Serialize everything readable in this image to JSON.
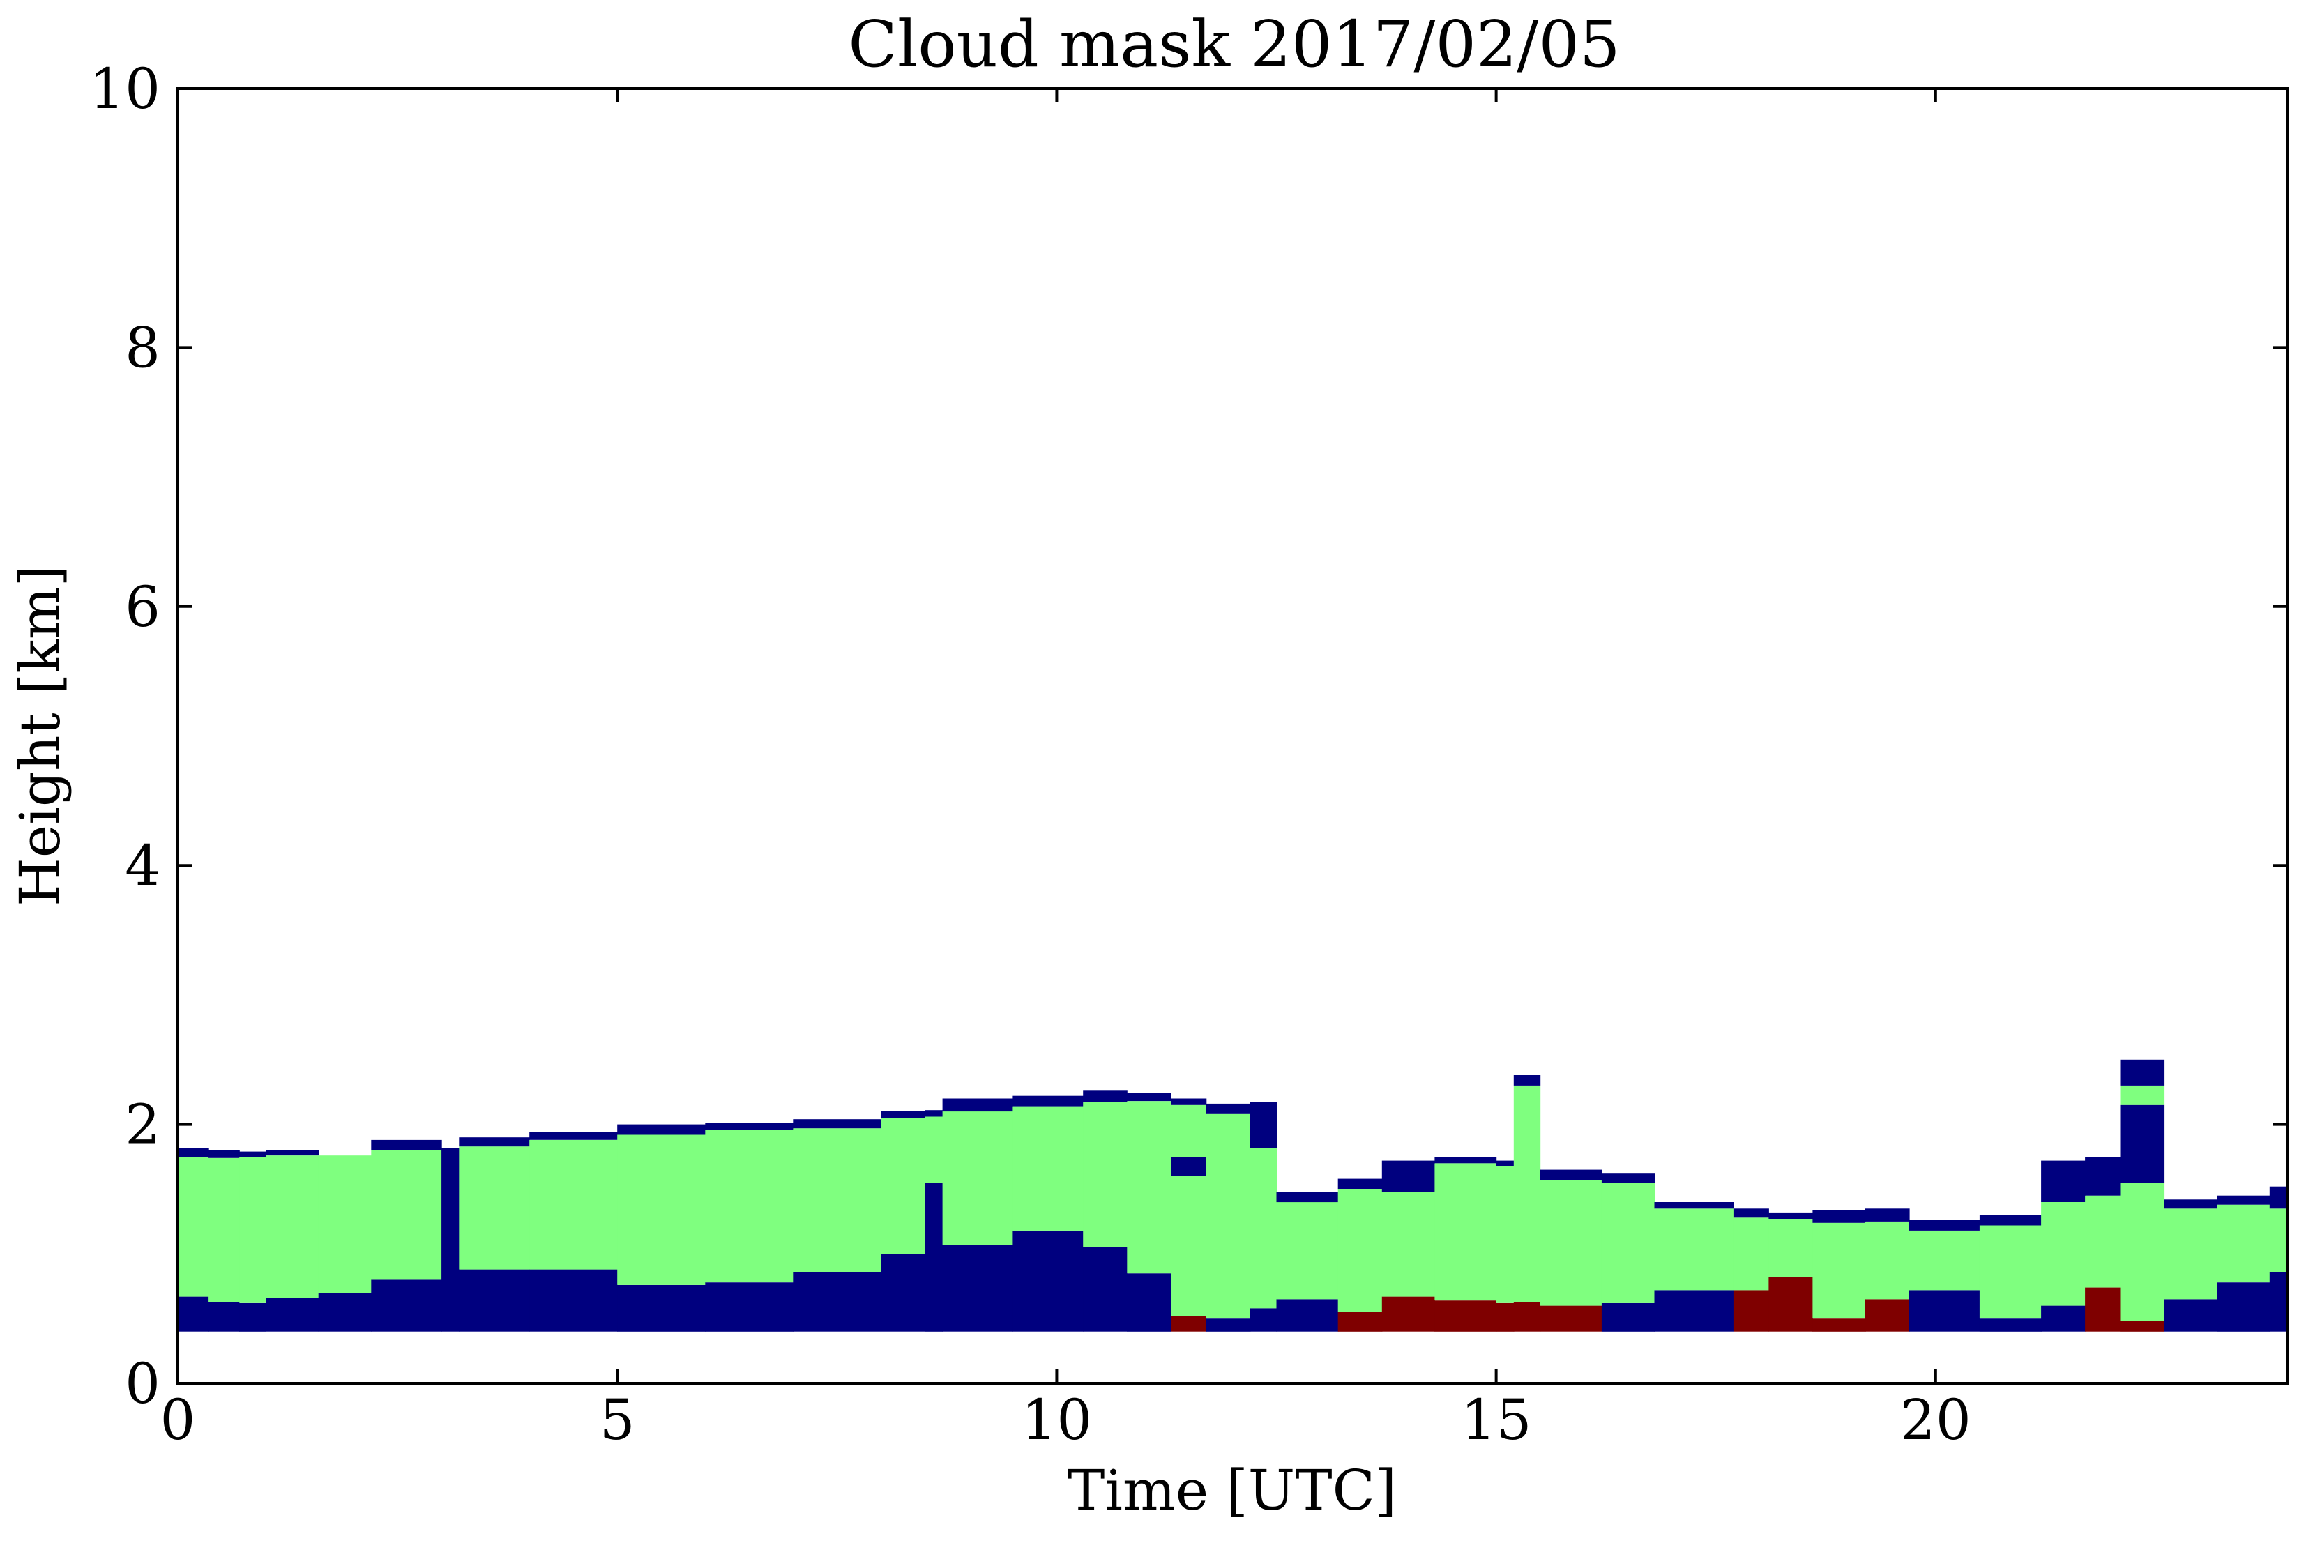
{
  "chart_data": {
    "type": "heatmap",
    "title": "Cloud mask 2017/02/05",
    "xlabel": "Time [UTC]",
    "ylabel": "Height [km]",
    "xlim": [
      0,
      24
    ],
    "ylim": [
      0,
      10
    ],
    "xticks": [
      0,
      5,
      10,
      15,
      20
    ],
    "xtick_labels": [
      "0",
      "5",
      "10",
      "15",
      "20"
    ],
    "yticks": [
      0,
      2,
      4,
      6,
      8,
      10
    ],
    "ytick_labels": [
      "0",
      "2",
      "4",
      "6",
      "8",
      "10"
    ],
    "grid": false,
    "legend": "none",
    "colors": {
      "class_navy": "#00007f",
      "class_green": "#7fff7f",
      "class_darkred": "#7f0000",
      "background": "#ffffff"
    },
    "base_height_km": 0.4,
    "columns": [
      {
        "t0": 0.0,
        "t1": 0.35,
        "layers": [
          [
            "navy",
            0.4,
            0.67
          ],
          [
            "green",
            0.67,
            1.75
          ],
          [
            "navy",
            1.75,
            1.82
          ]
        ]
      },
      {
        "t0": 0.35,
        "t1": 0.7,
        "layers": [
          [
            "navy",
            0.4,
            0.63
          ],
          [
            "green",
            0.63,
            1.74
          ],
          [
            "navy",
            1.74,
            1.8
          ]
        ]
      },
      {
        "t0": 0.7,
        "t1": 1.0,
        "layers": [
          [
            "navy",
            0.4,
            0.62
          ],
          [
            "green",
            0.62,
            1.75
          ],
          [
            "navy",
            1.75,
            1.79
          ]
        ]
      },
      {
        "t0": 1.0,
        "t1": 1.6,
        "layers": [
          [
            "navy",
            0.4,
            0.66
          ],
          [
            "green",
            0.66,
            1.76
          ],
          [
            "navy",
            1.76,
            1.8
          ]
        ]
      },
      {
        "t0": 1.6,
        "t1": 2.2,
        "layers": [
          [
            "navy",
            0.4,
            0.7
          ],
          [
            "green",
            0.7,
            1.76
          ]
        ]
      },
      {
        "t0": 2.2,
        "t1": 3.0,
        "layers": [
          [
            "navy",
            0.4,
            0.8
          ],
          [
            "green",
            0.8,
            1.8
          ],
          [
            "navy",
            1.8,
            1.88
          ]
        ]
      },
      {
        "t0": 3.0,
        "t1": 3.2,
        "layers": [
          [
            "navy",
            0.4,
            1.82
          ]
        ]
      },
      {
        "t0": 3.2,
        "t1": 4.0,
        "layers": [
          [
            "navy",
            0.4,
            0.88
          ],
          [
            "green",
            0.88,
            1.83
          ],
          [
            "navy",
            1.83,
            1.9
          ]
        ]
      },
      {
        "t0": 4.0,
        "t1": 5.0,
        "layers": [
          [
            "navy",
            0.4,
            0.88
          ],
          [
            "green",
            0.88,
            1.88
          ],
          [
            "navy",
            1.88,
            1.94
          ]
        ]
      },
      {
        "t0": 5.0,
        "t1": 6.0,
        "layers": [
          [
            "navy",
            0.4,
            0.76
          ],
          [
            "green",
            0.76,
            1.92
          ],
          [
            "navy",
            1.92,
            2.0
          ]
        ]
      },
      {
        "t0": 6.0,
        "t1": 7.0,
        "layers": [
          [
            "navy",
            0.4,
            0.78
          ],
          [
            "green",
            0.78,
            1.96
          ],
          [
            "navy",
            1.96,
            2.01
          ]
        ]
      },
      {
        "t0": 7.0,
        "t1": 8.0,
        "layers": [
          [
            "navy",
            0.4,
            0.86
          ],
          [
            "green",
            0.86,
            1.97
          ],
          [
            "navy",
            1.97,
            2.04
          ]
        ]
      },
      {
        "t0": 8.0,
        "t1": 8.5,
        "layers": [
          [
            "navy",
            0.4,
            1.0
          ],
          [
            "green",
            1.0,
            2.05
          ],
          [
            "navy",
            2.05,
            2.1
          ]
        ]
      },
      {
        "t0": 8.5,
        "t1": 8.7,
        "layers": [
          [
            "navy",
            0.4,
            1.55
          ],
          [
            "green",
            1.55,
            2.06
          ],
          [
            "navy",
            2.06,
            2.11
          ]
        ]
      },
      {
        "t0": 8.7,
        "t1": 9.5,
        "layers": [
          [
            "navy",
            0.4,
            1.07
          ],
          [
            "green",
            1.07,
            2.1
          ],
          [
            "navy",
            2.1,
            2.2
          ]
        ]
      },
      {
        "t0": 9.5,
        "t1": 10.3,
        "layers": [
          [
            "navy",
            0.4,
            1.18
          ],
          [
            "green",
            1.18,
            2.14
          ],
          [
            "navy",
            2.14,
            2.22
          ]
        ]
      },
      {
        "t0": 10.3,
        "t1": 10.8,
        "layers": [
          [
            "navy",
            0.4,
            1.05
          ],
          [
            "green",
            1.05,
            2.17
          ],
          [
            "navy",
            2.17,
            2.26
          ]
        ]
      },
      {
        "t0": 10.8,
        "t1": 11.3,
        "layers": [
          [
            "navy",
            0.4,
            0.85
          ],
          [
            "green",
            0.85,
            2.18
          ],
          [
            "navy",
            2.18,
            2.24
          ]
        ]
      },
      {
        "t0": 11.3,
        "t1": 11.7,
        "layers": [
          [
            "darkred",
            0.4,
            0.52
          ],
          [
            "green",
            0.52,
            1.6
          ],
          [
            "navy",
            1.6,
            1.75
          ],
          [
            "green",
            1.75,
            2.15
          ],
          [
            "navy",
            2.15,
            2.2
          ]
        ]
      },
      {
        "t0": 11.7,
        "t1": 12.2,
        "layers": [
          [
            "navy",
            0.4,
            0.5
          ],
          [
            "green",
            0.5,
            2.08
          ],
          [
            "navy",
            2.08,
            2.16
          ]
        ]
      },
      {
        "t0": 12.2,
        "t1": 12.5,
        "layers": [
          [
            "navy",
            0.4,
            0.58
          ],
          [
            "green",
            0.58,
            1.82
          ],
          [
            "navy",
            1.82,
            2.17
          ]
        ]
      },
      {
        "t0": 12.5,
        "t1": 13.2,
        "layers": [
          [
            "navy",
            0.4,
            0.65
          ],
          [
            "green",
            0.65,
            1.4
          ],
          [
            "navy",
            1.4,
            1.48
          ]
        ]
      },
      {
        "t0": 13.2,
        "t1": 13.7,
        "layers": [
          [
            "darkred",
            0.4,
            0.55
          ],
          [
            "green",
            0.55,
            1.5
          ],
          [
            "navy",
            1.5,
            1.58
          ]
        ]
      },
      {
        "t0": 13.7,
        "t1": 14.3,
        "layers": [
          [
            "darkred",
            0.4,
            0.67
          ],
          [
            "green",
            0.67,
            1.48
          ],
          [
            "navy",
            1.48,
            1.72
          ]
        ]
      },
      {
        "t0": 14.3,
        "t1": 15.0,
        "layers": [
          [
            "darkred",
            0.4,
            0.64
          ],
          [
            "green",
            0.64,
            1.7
          ],
          [
            "navy",
            1.7,
            1.75
          ]
        ]
      },
      {
        "t0": 15.0,
        "t1": 15.2,
        "layers": [
          [
            "darkred",
            0.4,
            0.62
          ],
          [
            "green",
            0.62,
            1.68
          ],
          [
            "navy",
            1.68,
            1.72
          ]
        ]
      },
      {
        "t0": 15.2,
        "t1": 15.5,
        "layers": [
          [
            "darkred",
            0.4,
            0.63
          ],
          [
            "green",
            0.63,
            1.85
          ],
          [
            "green",
            1.85,
            2.3
          ],
          [
            "navy",
            2.3,
            2.38
          ]
        ]
      },
      {
        "t0": 15.5,
        "t1": 16.2,
        "layers": [
          [
            "darkred",
            0.4,
            0.6
          ],
          [
            "green",
            0.6,
            1.57
          ],
          [
            "navy",
            1.57,
            1.65
          ]
        ]
      },
      {
        "t0": 16.2,
        "t1": 16.8,
        "layers": [
          [
            "navy",
            0.4,
            0.62
          ],
          [
            "green",
            0.62,
            1.55
          ],
          [
            "navy",
            1.55,
            1.62
          ]
        ]
      },
      {
        "t0": 16.8,
        "t1": 17.7,
        "layers": [
          [
            "navy",
            0.4,
            0.72
          ],
          [
            "green",
            0.72,
            1.35
          ],
          [
            "navy",
            1.35,
            1.4
          ]
        ]
      },
      {
        "t0": 17.7,
        "t1": 18.1,
        "layers": [
          [
            "darkred",
            0.4,
            0.72
          ],
          [
            "green",
            0.72,
            1.28
          ],
          [
            "navy",
            1.28,
            1.35
          ]
        ]
      },
      {
        "t0": 18.1,
        "t1": 18.6,
        "layers": [
          [
            "darkred",
            0.4,
            0.82
          ],
          [
            "green",
            0.82,
            1.27
          ],
          [
            "navy",
            1.27,
            1.32
          ]
        ]
      },
      {
        "t0": 18.6,
        "t1": 19.2,
        "layers": [
          [
            "darkred",
            0.4,
            0.5
          ],
          [
            "green",
            0.5,
            1.24
          ],
          [
            "navy",
            1.24,
            1.34
          ]
        ]
      },
      {
        "t0": 19.2,
        "t1": 19.7,
        "layers": [
          [
            "darkred",
            0.4,
            0.65
          ],
          [
            "green",
            0.65,
            1.25
          ],
          [
            "navy",
            1.25,
            1.35
          ]
        ]
      },
      {
        "t0": 19.7,
        "t1": 20.5,
        "layers": [
          [
            "navy",
            0.4,
            0.72
          ],
          [
            "green",
            0.72,
            1.18
          ],
          [
            "navy",
            1.18,
            1.26
          ]
        ]
      },
      {
        "t0": 20.5,
        "t1": 21.2,
        "layers": [
          [
            "navy",
            0.4,
            0.5
          ],
          [
            "green",
            0.5,
            1.22
          ],
          [
            "navy",
            1.22,
            1.3
          ]
        ]
      },
      {
        "t0": 21.2,
        "t1": 21.7,
        "layers": [
          [
            "navy",
            0.4,
            0.6
          ],
          [
            "green",
            0.6,
            1.4
          ],
          [
            "navy",
            1.4,
            1.72
          ]
        ]
      },
      {
        "t0": 21.7,
        "t1": 22.1,
        "layers": [
          [
            "darkred",
            0.4,
            0.74
          ],
          [
            "green",
            0.74,
            1.45
          ],
          [
            "navy",
            1.45,
            1.75
          ]
        ]
      },
      {
        "t0": 22.1,
        "t1": 22.6,
        "layers": [
          [
            "darkred",
            0.4,
            0.48
          ],
          [
            "green",
            0.48,
            1.55
          ],
          [
            "navy",
            1.55,
            2.15
          ],
          [
            "green",
            2.15,
            2.3
          ],
          [
            "navy",
            2.3,
            2.5
          ]
        ]
      },
      {
        "t0": 22.6,
        "t1": 23.2,
        "layers": [
          [
            "navy",
            0.4,
            0.65
          ],
          [
            "green",
            0.65,
            1.35
          ],
          [
            "navy",
            1.35,
            1.42
          ]
        ]
      },
      {
        "t0": 23.2,
        "t1": 23.8,
        "layers": [
          [
            "navy",
            0.4,
            0.78
          ],
          [
            "green",
            0.78,
            1.38
          ],
          [
            "navy",
            1.38,
            1.45
          ]
        ]
      },
      {
        "t0": 23.8,
        "t1": 24.0,
        "layers": [
          [
            "navy",
            0.4,
            0.86
          ],
          [
            "green",
            0.86,
            1.35
          ],
          [
            "navy",
            1.35,
            1.52
          ]
        ]
      }
    ]
  }
}
